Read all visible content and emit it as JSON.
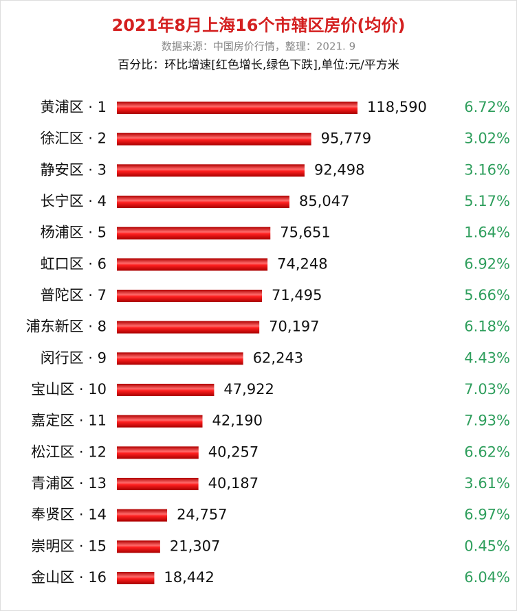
{
  "chart_data": {
    "type": "bar",
    "orientation": "horizontal",
    "title": "2021年8月上海16个市辖区房价(均价)",
    "subtitle": "数据来源：中国房价行情，整理：2021. 9",
    "note": "百分比：环比增速[红色增长,绿色下跌],单位:元/平方米",
    "categories": [
      "黄浦区 · 1",
      "徐汇区 · 2",
      "静安区 · 3",
      "长宁区 · 4",
      "杨浦区 · 5",
      "虹口区 · 6",
      "普陀区 · 7",
      "浦东新区 · 8",
      "闵行区 · 9",
      "宝山区 · 10",
      "嘉定区 · 11",
      "松江区 · 12",
      "青浦区 · 13",
      "奉贤区 · 14",
      "崇明区 · 15",
      "金山区 · 16"
    ],
    "values": [
      118590,
      95779,
      92498,
      85047,
      75651,
      74248,
      71495,
      70197,
      62243,
      47922,
      42190,
      40257,
      40187,
      24757,
      21307,
      18442
    ],
    "value_labels": [
      "118,590",
      "95,779",
      "92,498",
      "85,047",
      "75,651",
      "74,248",
      "71,495",
      "70,197",
      "62,243",
      "47,922",
      "42,190",
      "40,257",
      "40,187",
      "24,757",
      "21,307",
      "18,442"
    ],
    "color": "#e8141b",
    "growth": {
      "color": "#2e9e5c",
      "values": [
        6.72,
        3.02,
        3.16,
        5.17,
        1.64,
        6.92,
        5.66,
        6.18,
        4.43,
        7.03,
        7.93,
        6.62,
        3.61,
        6.97,
        0.45,
        6.04
      ],
      "value_labels": [
        "6.72%",
        "3.02%",
        "3.16%",
        "5.17%",
        "1.64%",
        "6.92%",
        "5.66%",
        "6.18%",
        "4.43%",
        "7.03%",
        "7.93%",
        "6.62%",
        "3.61%",
        "6.97%",
        "0.45%",
        "6.04%"
      ]
    }
  }
}
